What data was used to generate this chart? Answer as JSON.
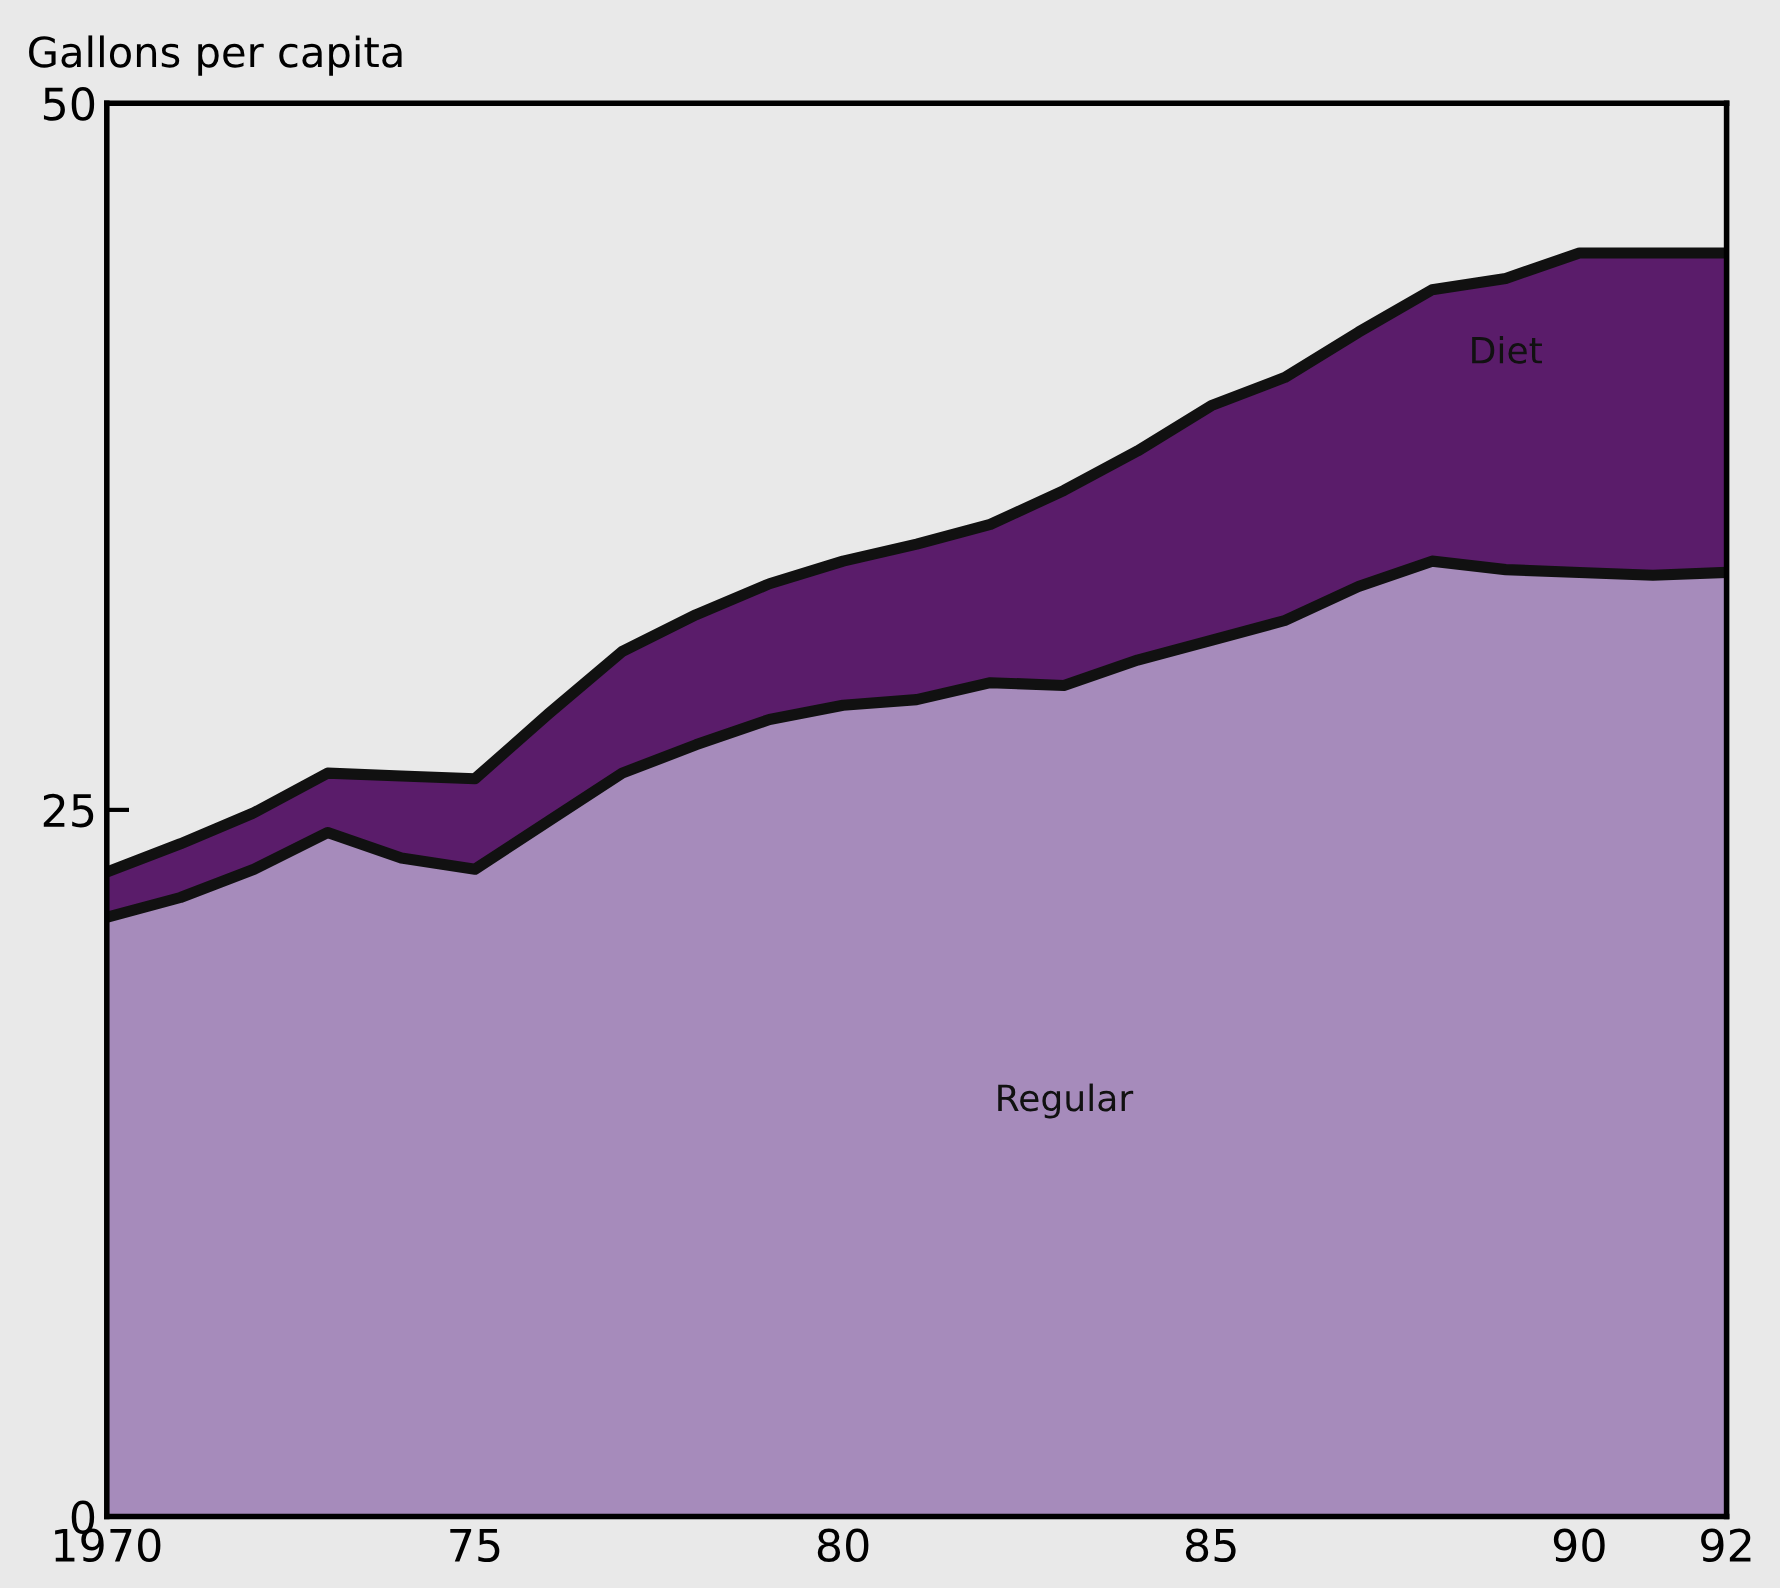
{
  "chart_data": {
    "type": "area",
    "stacked": true,
    "ylabel": "Gallons per capita",
    "x": [
      1970,
      1971,
      1972,
      1973,
      1974,
      1975,
      1976,
      1977,
      1978,
      1979,
      1980,
      1981,
      1982,
      1983,
      1984,
      1985,
      1986,
      1987,
      1988,
      1989,
      1990,
      1991,
      1992
    ],
    "series": [
      {
        "name": "Regular",
        "color": "#a68bbb",
        "values": [
          21.2,
          21.9,
          22.9,
          24.2,
          23.3,
          22.9,
          24.6,
          26.3,
          27.3,
          28.2,
          28.7,
          28.9,
          29.5,
          29.4,
          30.3,
          31.0,
          31.7,
          32.9,
          33.8,
          33.5,
          33.4,
          33.3,
          33.4
        ]
      },
      {
        "name": "Diet",
        "color": "#5a1c6a",
        "values": [
          1.6,
          1.9,
          2.0,
          2.1,
          2.9,
          3.2,
          3.8,
          4.3,
          4.6,
          4.8,
          5.1,
          5.5,
          5.6,
          6.9,
          7.4,
          8.3,
          8.6,
          9.0,
          9.6,
          10.3,
          11.3,
          11.4,
          11.3
        ]
      }
    ],
    "xlim": [
      1970,
      1992
    ],
    "xticks": [
      1970,
      {
        "value": 1975,
        "label": "75"
      },
      {
        "value": 1980,
        "label": "80"
      },
      {
        "value": 1985,
        "label": "85"
      },
      {
        "value": 1990,
        "label": "90"
      },
      {
        "value": 1992,
        "label": "92"
      }
    ],
    "ylim": [
      0,
      50
    ],
    "yticks": [
      0,
      25,
      50
    ],
    "grid": false,
    "legend": false
  }
}
